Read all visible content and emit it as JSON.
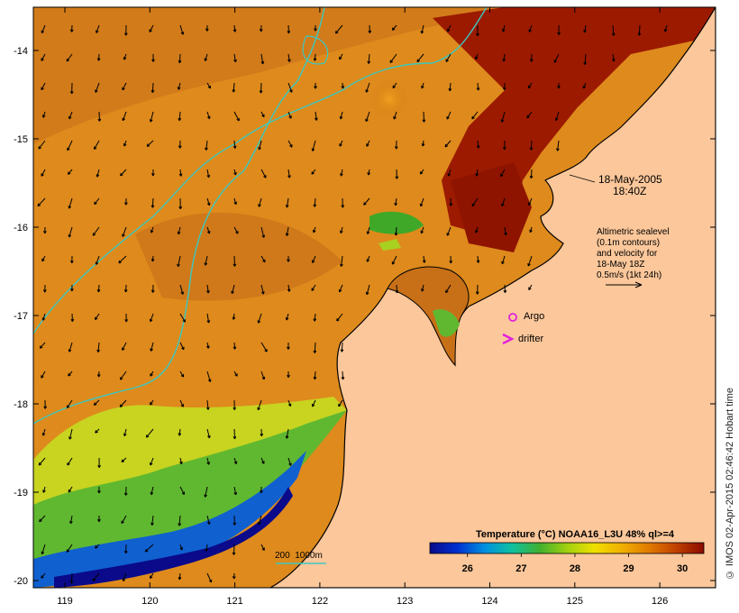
{
  "map": {
    "date_line1": "18-May-2005",
    "date_line2": "18:40Z",
    "note_lines": [
      "Altimetric sealevel",
      "(0.1m contours)",
      "and velocity for",
      "18-May 18Z",
      "0.5m/s (1kt 24h)"
    ],
    "legend_argo": "Argo",
    "legend_drifter": "drifter",
    "depth_label": "200  1000m",
    "colorbar_title": "Temperature (°C) NOAA16_L3U 48% ql>=4",
    "colorbar_ticks": [
      "26",
      "27",
      "28",
      "29",
      "30"
    ],
    "colorbar_tick_values": [
      26,
      27,
      28,
      29,
      30
    ],
    "colorbar_range": [
      25.3,
      30.4
    ],
    "colorbar_colors": [
      "#0a0a8a",
      "#0030d0",
      "#0090e0",
      "#10c0a0",
      "#40b030",
      "#a0d010",
      "#f0e000",
      "#f0b000",
      "#e07a00",
      "#c04000",
      "#8a0a00"
    ],
    "lon_ticks": [
      "119",
      "120",
      "121",
      "122",
      "123",
      "124",
      "125",
      "126"
    ],
    "lat_ticks": [
      "-14",
      "-15",
      "-16",
      "-17",
      "-18",
      "-19",
      "-20"
    ],
    "credit": "© IMOS 02-Apr-2015 02:46:42 Hobart time",
    "colors": {
      "land": "#fcc79a",
      "warm_sea": "#e08a1a",
      "hot_sea": "#9a1a00",
      "cool_sea": "#b8d820",
      "contour": "#3cc8c0",
      "argo": "#e020e0",
      "drifter": "#e020e0"
    }
  }
}
